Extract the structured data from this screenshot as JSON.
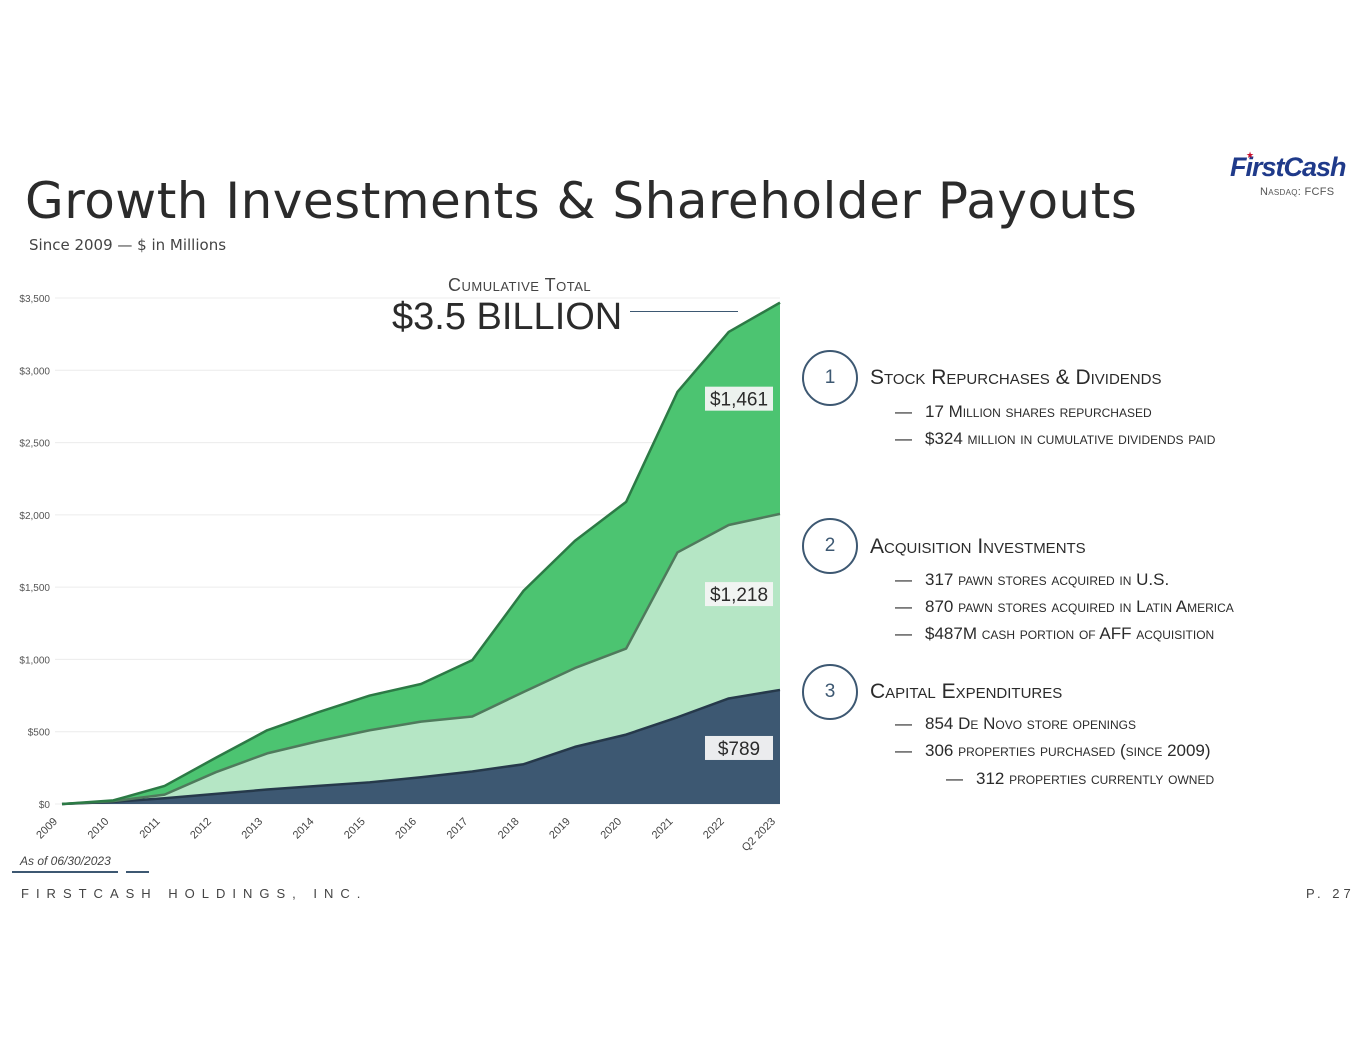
{
  "header": {
    "title": "Growth Investments & Shareholder Payouts",
    "subtitle": "Since 2009 — $ in Millions",
    "logo_name": "FirstCash",
    "logo_ticker": "Nasdaq: FCFS"
  },
  "callout": {
    "label": "Cumulative Total",
    "value": "$3.5 BILLION"
  },
  "chart_data": {
    "type": "area",
    "stacked": true,
    "categories": [
      "2009",
      "2010",
      "2011",
      "2012",
      "2013",
      "2014",
      "2015",
      "2016",
      "2017",
      "2018",
      "2019",
      "2020",
      "2021",
      "2022",
      "Q2 2023"
    ],
    "ylim": [
      0,
      3500
    ],
    "yticks": [
      "$0",
      "$500",
      "$1,000",
      "$1,500",
      "$2,000",
      "$2,500",
      "$3,000",
      "$3,500"
    ],
    "ytick_values": [
      0,
      500,
      1000,
      1500,
      2000,
      2500,
      3000,
      3500
    ],
    "grid": true,
    "series": [
      {
        "values": [
          0,
          15,
          40,
          70,
          100,
          125,
          150,
          185,
          225,
          275,
          395,
          480,
          600,
          730,
          789
        ],
        "color": "#3d5872",
        "end_label": "$789"
      },
      {
        "values": [
          0,
          5,
          25,
          150,
          250,
          310,
          360,
          385,
          380,
          500,
          545,
          595,
          1140,
          1200,
          1218
        ],
        "color": "#b5e6c5",
        "end_label": "$1,218"
      },
      {
        "values": [
          0,
          5,
          60,
          100,
          160,
          200,
          240,
          260,
          390,
          700,
          880,
          1015,
          1110,
          1335,
          1461
        ],
        "color": "#4cc471",
        "end_label": "$1,461"
      }
    ]
  },
  "sections": [
    {
      "number": "1",
      "title": "Stock Repurchases & Dividends",
      "bullets": [
        "17 Million shares repurchased",
        "$324 million in cumulative dividends paid"
      ]
    },
    {
      "number": "2",
      "title": "Acquisition Investments",
      "bullets": [
        "317 pawn stores acquired in U.S.",
        "870 pawn stores acquired in Latin America",
        "$487M cash portion of AFF acquisition"
      ]
    },
    {
      "number": "3",
      "title": "Capital Expenditures",
      "bullets": [
        "854 De Novo store openings",
        "306 properties purchased (since 2009)"
      ],
      "sub_bullets": [
        "312 properties currently owned"
      ]
    }
  ],
  "footer": {
    "as_of": "As of 06/30/2023",
    "company": "FIRSTCASH HOLDINGS, INC.",
    "page": "P. 27"
  },
  "bullet_dash": "—"
}
